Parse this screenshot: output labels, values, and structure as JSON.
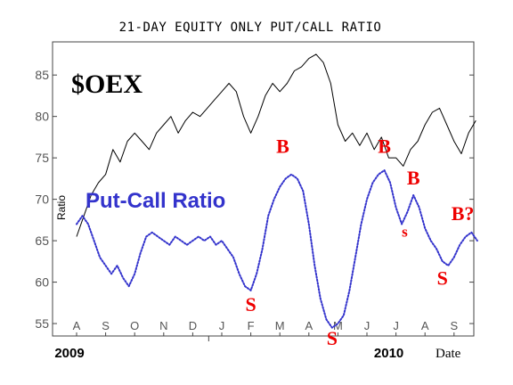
{
  "chart_data": {
    "type": "line",
    "title": "21-DAY EQUITY ONLY PUT/CALL RATIO",
    "xlabel": "Date",
    "ylabel": "Ratio",
    "ylim": [
      53.5,
      89
    ],
    "yticks": [
      55,
      60,
      65,
      70,
      75,
      80,
      85
    ],
    "grid": false,
    "months": [
      "A",
      "S",
      "O",
      "N",
      "D",
      "J",
      "F",
      "M",
      "A",
      "M",
      "J",
      "J",
      "A",
      "S"
    ],
    "years": [
      {
        "label": "2009",
        "month_index": 0
      },
      {
        "label": "2010",
        "month_index": 11
      }
    ],
    "series": [
      {
        "name": "$OEX",
        "color": "#000000",
        "style": "solid",
        "points": [
          [
            0,
            65.5
          ],
          [
            0.25,
            68
          ],
          [
            0.5,
            70.5
          ],
          [
            0.75,
            72
          ],
          [
            1,
            73
          ],
          [
            1.25,
            76
          ],
          [
            1.5,
            74.5
          ],
          [
            1.75,
            77
          ],
          [
            2,
            78
          ],
          [
            2.25,
            77
          ],
          [
            2.5,
            76
          ],
          [
            2.75,
            78
          ],
          [
            3,
            79
          ],
          [
            3.25,
            80
          ],
          [
            3.5,
            78
          ],
          [
            3.75,
            79.5
          ],
          [
            4,
            80.5
          ],
          [
            4.25,
            80
          ],
          [
            4.5,
            81
          ],
          [
            4.75,
            82
          ],
          [
            5,
            83
          ],
          [
            5.25,
            84
          ],
          [
            5.5,
            83
          ],
          [
            5.75,
            80
          ],
          [
            6,
            78
          ],
          [
            6.25,
            80
          ],
          [
            6.5,
            82.5
          ],
          [
            6.75,
            84
          ],
          [
            7,
            83
          ],
          [
            7.25,
            84
          ],
          [
            7.5,
            85.5
          ],
          [
            7.75,
            86
          ],
          [
            8,
            87
          ],
          [
            8.25,
            87.5
          ],
          [
            8.5,
            86.5
          ],
          [
            8.75,
            84
          ],
          [
            9,
            79
          ],
          [
            9.25,
            77
          ],
          [
            9.5,
            78
          ],
          [
            9.75,
            76.5
          ],
          [
            10,
            78
          ],
          [
            10.25,
            76
          ],
          [
            10.5,
            77.5
          ],
          [
            10.75,
            75
          ],
          [
            11,
            75
          ],
          [
            11.25,
            74
          ],
          [
            11.5,
            76
          ],
          [
            11.75,
            77
          ],
          [
            12,
            79
          ],
          [
            12.25,
            80.5
          ],
          [
            12.5,
            81
          ],
          [
            12.75,
            79
          ],
          [
            13,
            77
          ],
          [
            13.25,
            75.5
          ],
          [
            13.5,
            78
          ],
          [
            13.75,
            79.5
          ]
        ]
      },
      {
        "name": "Put-Call Ratio",
        "color": "#3333cc",
        "style": "dotted",
        "points": [
          [
            0,
            67
          ],
          [
            0.2,
            68
          ],
          [
            0.4,
            67
          ],
          [
            0.6,
            65
          ],
          [
            0.8,
            63
          ],
          [
            1,
            62
          ],
          [
            1.2,
            61
          ],
          [
            1.4,
            62
          ],
          [
            1.6,
            60.5
          ],
          [
            1.8,
            59.5
          ],
          [
            2,
            61
          ],
          [
            2.2,
            63.5
          ],
          [
            2.4,
            65.5
          ],
          [
            2.6,
            66
          ],
          [
            2.8,
            65.5
          ],
          [
            3,
            65
          ],
          [
            3.2,
            64.5
          ],
          [
            3.4,
            65.5
          ],
          [
            3.6,
            65
          ],
          [
            3.8,
            64.5
          ],
          [
            4,
            65
          ],
          [
            4.2,
            65.5
          ],
          [
            4.4,
            65
          ],
          [
            4.6,
            65.5
          ],
          [
            4.8,
            64.5
          ],
          [
            5,
            65
          ],
          [
            5.2,
            64
          ],
          [
            5.4,
            63
          ],
          [
            5.6,
            61
          ],
          [
            5.8,
            59.5
          ],
          [
            6,
            59
          ],
          [
            6.2,
            61
          ],
          [
            6.4,
            64
          ],
          [
            6.6,
            68
          ],
          [
            6.8,
            70
          ],
          [
            7,
            71.5
          ],
          [
            7.2,
            72.5
          ],
          [
            7.4,
            73
          ],
          [
            7.6,
            72.5
          ],
          [
            7.8,
            71
          ],
          [
            8,
            67
          ],
          [
            8.2,
            62
          ],
          [
            8.4,
            58
          ],
          [
            8.6,
            55.5
          ],
          [
            8.8,
            54.5
          ],
          [
            9,
            55
          ],
          [
            9.2,
            56
          ],
          [
            9.4,
            59
          ],
          [
            9.6,
            63
          ],
          [
            9.8,
            67
          ],
          [
            10,
            70
          ],
          [
            10.2,
            72
          ],
          [
            10.4,
            73
          ],
          [
            10.6,
            73.5
          ],
          [
            10.8,
            72
          ],
          [
            11,
            69
          ],
          [
            11.2,
            67
          ],
          [
            11.4,
            68.5
          ],
          [
            11.6,
            70.5
          ],
          [
            11.8,
            69
          ],
          [
            12,
            66.5
          ],
          [
            12.2,
            65
          ],
          [
            12.4,
            64
          ],
          [
            12.6,
            62.5
          ],
          [
            12.8,
            62
          ],
          [
            13,
            63
          ],
          [
            13.2,
            64.5
          ],
          [
            13.4,
            65.5
          ],
          [
            13.6,
            66
          ],
          [
            13.8,
            65
          ]
        ]
      }
    ],
    "annotations": {
      "oex": "$OEX",
      "pcr": "Put-Call Ratio",
      "signals": [
        {
          "text": "B",
          "x": 7.1,
          "y": 75.6,
          "size": 22
        },
        {
          "text": "B",
          "x": 10.6,
          "y": 75.6,
          "size": 22
        },
        {
          "text": "B",
          "x": 11.6,
          "y": 71.8,
          "size": 22
        },
        {
          "text": "B?",
          "x": 13.3,
          "y": 67.5,
          "size": 22
        },
        {
          "text": "S",
          "x": 6.0,
          "y": 56.5,
          "size": 22
        },
        {
          "text": "S",
          "x": 8.8,
          "y": 52.4,
          "size": 22
        },
        {
          "text": "S",
          "x": 12.6,
          "y": 59.7,
          "size": 22
        },
        {
          "text": "s",
          "x": 11.3,
          "y": 65.5,
          "size": 17
        }
      ]
    }
  }
}
